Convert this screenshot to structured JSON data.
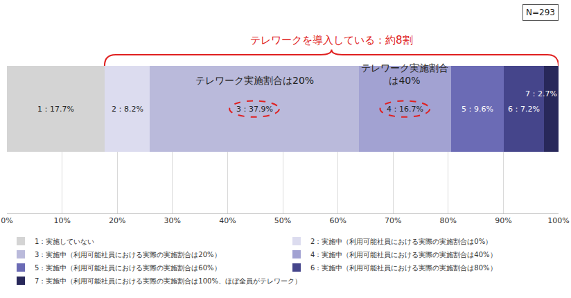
{
  "chart_data": {
    "type": "bar",
    "orientation": "horizontal",
    "stacked": true,
    "data_labels": true,
    "grid": true,
    "legend": "bottom",
    "categories": [
      null
    ],
    "xlim": [
      0,
      100
    ],
    "xticks": [
      {
        "value": 0,
        "label": "0%"
      },
      {
        "value": 10,
        "label": "10%"
      },
      {
        "value": 20,
        "label": "20%"
      },
      {
        "value": 30,
        "label": "30%"
      },
      {
        "value": 40,
        "label": "40%"
      },
      {
        "value": 50,
        "label": "50%"
      },
      {
        "value": 60,
        "label": "60%"
      },
      {
        "value": 70,
        "label": "70%"
      },
      {
        "value": 80,
        "label": "80%"
      },
      {
        "value": 90,
        "label": "90%"
      },
      {
        "value": 100,
        "label": "100%"
      }
    ],
    "bracket_label": "テレワークを導入している：約8割",
    "note": "N=293",
    "series": [
      {
        "name": "1：実施していない",
        "color": "#d4d4d4",
        "values": [
          17.7
        ],
        "value_labels": [
          "1：17.7%"
        ]
      },
      {
        "name": "2：実施中（利用可能社員における実際の実施割合は0%）",
        "color": "#dcdcef",
        "values": [
          8.2
        ],
        "value_labels": [
          "2：8.2%"
        ]
      },
      {
        "name": "3：実施中（利用可能社員における実際の実施割合は20%）",
        "color": "#babadb",
        "values": [
          37.9
        ],
        "value_labels": [
          "3：37.9%"
        ],
        "annotation": "テレワーク実施割合は20%"
      },
      {
        "name": "4：実施中（利用可能社員における実際の実施割合は40%）",
        "color": "#a2a2d2",
        "values": [
          16.7
        ],
        "value_labels": [
          "4：16.7%"
        ],
        "annotation": "テレワーク実施割合は40%"
      },
      {
        "name": "5：実施中（利用可能社員における実際の実施割合は60%）",
        "color": "#6b6bb5",
        "values": [
          9.6
        ],
        "value_labels": [
          "5：9.6%"
        ]
      },
      {
        "name": "6：実施中（利用可能社員における実際の実施割合は80%）",
        "color": "#45458b",
        "values": [
          7.2
        ],
        "value_labels": [
          "6：7.2%"
        ]
      },
      {
        "name": "7：実施中（利用可能社員における実際の実施割合は100%、ほぼ全員がテレワーク）",
        "color": "#28285a",
        "values": [
          2.7
        ],
        "value_labels": [
          "7：2.7%"
        ]
      }
    ]
  }
}
